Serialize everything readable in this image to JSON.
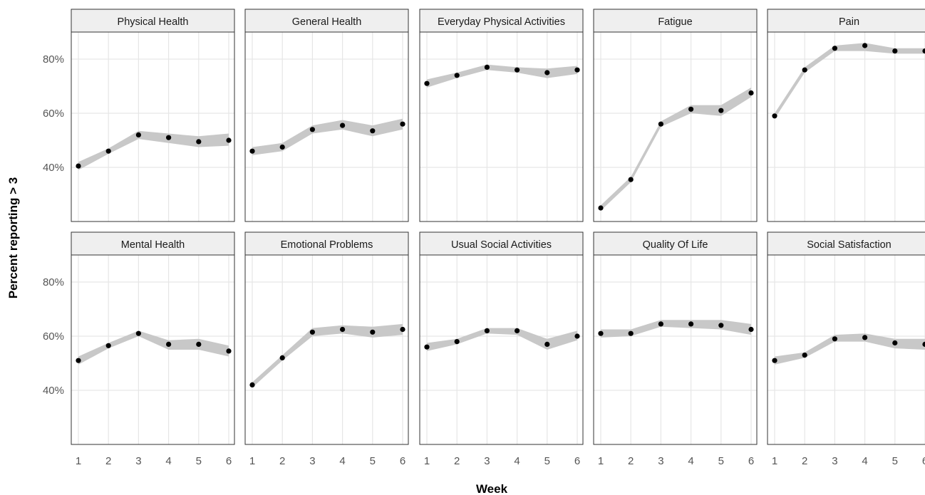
{
  "chart_data": {
    "type": "scatter",
    "subtype": "faceted line with confidence band",
    "xlabel": "Week",
    "ylabel": "Percent reporting > 3",
    "x": [
      1,
      2,
      3,
      4,
      5,
      6
    ],
    "ylim": [
      20,
      90
    ],
    "yticks": [
      40,
      60,
      80
    ],
    "ytick_labels": [
      "40%",
      "60%",
      "80%"
    ],
    "grid": true,
    "facet_rows": 2,
    "facet_cols": 5,
    "colors": {
      "point": "#000000",
      "band": "#c8c8c8",
      "strip": "#efefef",
      "grid": "#e6e6e6",
      "border": "#333333"
    },
    "panels": [
      {
        "title": "Physical Health",
        "y": [
          40.5,
          46,
          52,
          51,
          49.5,
          50
        ],
        "lower": [
          39,
          45,
          50.5,
          49,
          47.5,
          48
        ],
        "upper": [
          42,
          47,
          53.5,
          52.5,
          51.5,
          52.5
        ]
      },
      {
        "title": "General Health",
        "y": [
          46,
          47.5,
          54,
          55.5,
          53.5,
          56
        ],
        "lower": [
          44.5,
          46,
          52.5,
          54,
          51.5,
          54
        ],
        "upper": [
          47.5,
          49,
          55.5,
          57.5,
          55.5,
          58
        ]
      },
      {
        "title": "Everyday Physical Activities",
        "y": [
          71,
          74,
          77,
          76,
          75,
          76
        ],
        "lower": [
          69.5,
          73,
          76,
          75,
          73,
          74.5
        ],
        "upper": [
          72.5,
          75,
          78,
          77,
          76.5,
          77.5
        ]
      },
      {
        "title": "Fatigue",
        "y": [
          25,
          35.5,
          56,
          61.5,
          61,
          67.5
        ],
        "lower": [
          24,
          34.5,
          55,
          60,
          59,
          66
        ],
        "upper": [
          26,
          36.5,
          57,
          63,
          63,
          69.5
        ]
      },
      {
        "title": "Pain",
        "y": [
          59,
          76,
          84,
          85,
          83,
          83
        ],
        "lower": [
          58,
          75,
          83,
          83,
          82,
          82
        ],
        "upper": [
          60,
          77,
          85,
          86,
          84,
          84
        ]
      },
      {
        "title": "Mental Health",
        "y": [
          51,
          56.5,
          61,
          57,
          57,
          54.5
        ],
        "lower": [
          49.5,
          55.5,
          60,
          55,
          55,
          52.5
        ],
        "upper": [
          52.5,
          57.5,
          62,
          58.5,
          59,
          56.5
        ]
      },
      {
        "title": "Emotional Problems",
        "y": [
          42,
          52,
          61.5,
          62.5,
          61.5,
          62.5
        ],
        "lower": [
          41,
          51,
          60,
          61,
          59.5,
          60.5
        ],
        "upper": [
          43,
          53,
          63,
          64,
          63.5,
          64.5
        ]
      },
      {
        "title": "Usual Social Activities",
        "y": [
          56,
          58,
          62,
          62,
          57,
          60
        ],
        "lower": [
          54.5,
          57,
          61,
          60.5,
          55,
          58.5
        ],
        "upper": [
          57.5,
          59,
          63,
          63,
          59,
          62
        ]
      },
      {
        "title": "Quality Of Life",
        "y": [
          61,
          61,
          64.5,
          64.5,
          64,
          62.5
        ],
        "lower": [
          59.5,
          60,
          63.5,
          63,
          62.5,
          60.5
        ],
        "upper": [
          62.5,
          62.5,
          66,
          66,
          66,
          64.5
        ]
      },
      {
        "title": "Social Satisfaction",
        "y": [
          51,
          53,
          59,
          59.5,
          57.5,
          57
        ],
        "lower": [
          49.5,
          52,
          58,
          58,
          55.5,
          55
        ],
        "upper": [
          52.5,
          54,
          60.5,
          61,
          59,
          59
        ]
      }
    ]
  }
}
